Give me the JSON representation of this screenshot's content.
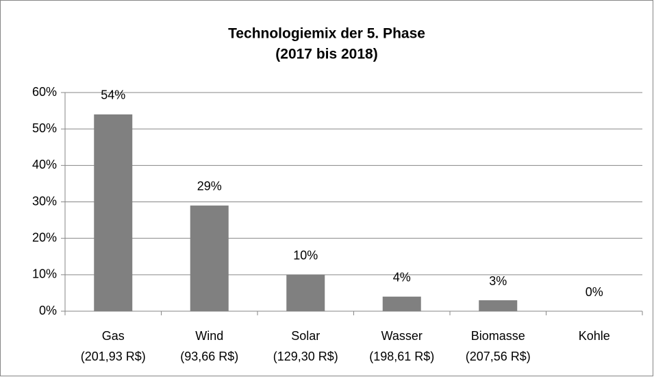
{
  "chart_data": {
    "type": "bar",
    "title": "Technologiemix der 5. Phase",
    "subtitle": "(2017 bis 2018)",
    "categories": [
      [
        "Gas",
        "(201,93 R$)"
      ],
      [
        "Wind",
        "(93,66 R$)"
      ],
      [
        "Solar",
        "(129,30 R$)"
      ],
      [
        "Wasser",
        "(198,61 R$)"
      ],
      [
        "Biomasse",
        "(207,56 R$)"
      ],
      [
        "Kohle"
      ]
    ],
    "values": [
      54,
      29,
      10,
      4,
      3,
      0
    ],
    "value_labels": [
      "54%",
      "29%",
      "10%",
      "4%",
      "3%",
      "0%"
    ],
    "color": "#808080",
    "ylim": [
      0,
      60
    ],
    "yticks": [
      {
        "value": 0,
        "label": "0%"
      },
      {
        "value": 10,
        "label": "10%"
      },
      {
        "value": 20,
        "label": "20%"
      },
      {
        "value": 30,
        "label": "30%"
      },
      {
        "value": 40,
        "label": "40%"
      },
      {
        "value": 50,
        "label": "50%"
      },
      {
        "value": 60,
        "label": "60%"
      }
    ],
    "grid": true
  }
}
